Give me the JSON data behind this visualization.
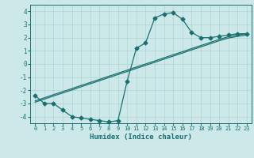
{
  "xlabel": "Humidex (Indice chaleur)",
  "xlim": [
    -0.5,
    23.5
  ],
  "ylim": [
    -4.5,
    4.5
  ],
  "xticks": [
    0,
    1,
    2,
    3,
    4,
    5,
    6,
    7,
    8,
    9,
    10,
    11,
    12,
    13,
    14,
    15,
    16,
    17,
    18,
    19,
    20,
    21,
    22,
    23
  ],
  "yticks": [
    -4,
    -3,
    -2,
    -1,
    0,
    1,
    2,
    3,
    4
  ],
  "bg_color": "#cce8e8",
  "grid_color": "#b0d8d8",
  "line_color": "#1a7070",
  "line1_x": [
    0,
    1,
    2,
    3,
    4,
    5,
    6,
    7,
    8,
    9,
    10,
    11,
    12,
    13,
    14,
    15,
    16,
    17,
    18,
    19,
    20,
    21,
    22,
    23
  ],
  "line1_y": [
    -2.4,
    -3.0,
    -3.0,
    -3.5,
    -4.0,
    -4.1,
    -4.2,
    -4.3,
    -4.4,
    -4.3,
    -1.3,
    1.2,
    1.6,
    3.5,
    3.8,
    3.9,
    3.4,
    2.4,
    2.0,
    2.0,
    2.1,
    2.2,
    2.3,
    2.3
  ],
  "line2_x": [
    0,
    1,
    2,
    3,
    4,
    5,
    6,
    7,
    8,
    9,
    10,
    11,
    12,
    13,
    14,
    15,
    16,
    17,
    18,
    19,
    20,
    21,
    22,
    23
  ],
  "line2_y": [
    -2.8,
    -2.57,
    -2.33,
    -2.1,
    -1.87,
    -1.63,
    -1.4,
    -1.17,
    -0.93,
    -0.7,
    -0.47,
    -0.23,
    0.0,
    0.23,
    0.47,
    0.7,
    0.93,
    1.17,
    1.4,
    1.63,
    1.87,
    2.07,
    2.2,
    2.3
  ],
  "line3_x": [
    0,
    1,
    2,
    3,
    4,
    5,
    6,
    7,
    8,
    9,
    10,
    11,
    12,
    13,
    14,
    15,
    16,
    17,
    18,
    19,
    20,
    21,
    22,
    23
  ],
  "line3_y": [
    -2.9,
    -2.67,
    -2.43,
    -2.2,
    -1.97,
    -1.73,
    -1.5,
    -1.27,
    -1.03,
    -0.8,
    -0.57,
    -0.33,
    -0.1,
    0.13,
    0.37,
    0.6,
    0.83,
    1.07,
    1.3,
    1.53,
    1.77,
    1.97,
    2.1,
    2.2
  ],
  "marker": "D",
  "marker_size": 2.5,
  "lw": 0.9
}
